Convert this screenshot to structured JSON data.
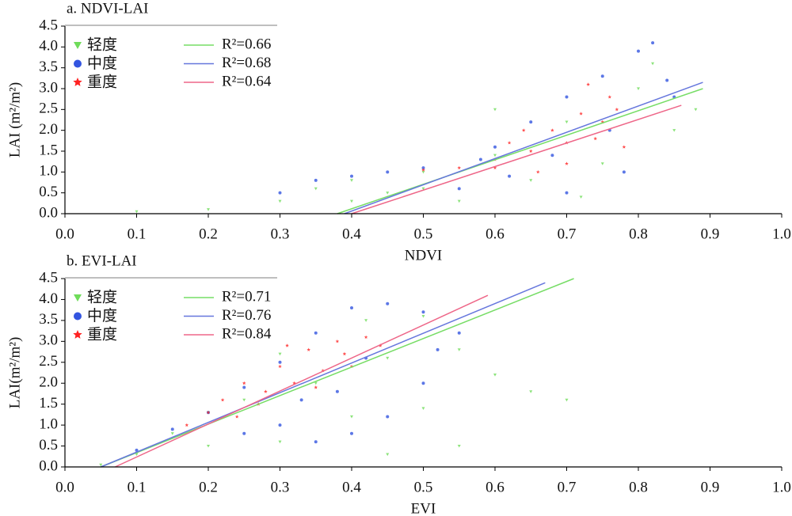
{
  "chart_data": [
    {
      "type": "scatter",
      "title": "a. NDVI-LAI",
      "xlabel": "NDVI",
      "ylabel": "LAI (m²/m²)",
      "xlim": [
        0,
        1
      ],
      "ylim": [
        0,
        4.5
      ],
      "xticks": [
        {
          "value": 0,
          "label": "0.0"
        },
        0.1,
        0.2,
        0.3,
        0.4,
        0.5,
        0.6,
        0.7,
        0.8,
        0.9,
        {
          "value": 1,
          "label": "1.0"
        }
      ],
      "yticks": [
        {
          "value": 0,
          "label": "0.0"
        },
        0.5,
        {
          "value": 1,
          "label": "1.0"
        },
        1.5,
        {
          "value": 2,
          "label": "2.0"
        },
        2.5,
        {
          "value": 3,
          "label": "3.0"
        },
        3.5,
        {
          "value": 4,
          "label": "4.0"
        },
        4.5
      ],
      "series": [
        {
          "name": "轻度",
          "color": "#6fdc5a",
          "marker": "triangle",
          "x": [
            0.1,
            0.2,
            0.3,
            0.35,
            0.4,
            0.45,
            0.5,
            0.55,
            0.6,
            0.65,
            0.7,
            0.75,
            0.8,
            0.85,
            0.88,
            0.82,
            0.6,
            0.4,
            0.5,
            0.72
          ],
          "values": [
            0.05,
            0.1,
            0.3,
            0.6,
            0.8,
            0.5,
            1.0,
            0.3,
            1.4,
            0.8,
            2.2,
            1.2,
            3.0,
            2.0,
            2.5,
            3.6,
            2.5,
            0.3,
            0.6,
            0.4
          ]
        },
        {
          "name": "中度",
          "color": "#3355e0",
          "marker": "circle",
          "x": [
            0.3,
            0.35,
            0.4,
            0.45,
            0.5,
            0.55,
            0.6,
            0.65,
            0.7,
            0.75,
            0.8,
            0.82,
            0.85,
            0.78,
            0.7,
            0.62,
            0.68,
            0.76,
            0.84,
            0.58
          ],
          "values": [
            0.5,
            0.8,
            0.9,
            1.0,
            1.1,
            0.6,
            1.6,
            2.2,
            2.8,
            3.3,
            3.9,
            4.1,
            2.8,
            1.0,
            0.5,
            0.9,
            1.4,
            2.0,
            3.2,
            1.3
          ]
        },
        {
          "name": "重度",
          "color": "#ff2222",
          "marker": "star",
          "x": [
            0.5,
            0.55,
            0.6,
            0.62,
            0.65,
            0.68,
            0.7,
            0.72,
            0.74,
            0.76,
            0.78,
            0.75,
            0.66,
            0.7,
            0.73,
            0.6,
            0.77,
            0.64
          ],
          "values": [
            1.05,
            1.1,
            1.3,
            1.7,
            1.5,
            2.0,
            1.2,
            2.4,
            1.8,
            2.8,
            1.6,
            2.2,
            1.0,
            1.7,
            3.1,
            1.1,
            2.5,
            2.0
          ]
        }
      ],
      "fits": [
        {
          "name": "R²=0.66",
          "color": "#77dd66",
          "x": [
            0.38,
            0.89
          ],
          "values": [
            0,
            3.0
          ]
        },
        {
          "name": "R²=0.68",
          "color": "#6677dd",
          "x": [
            0.39,
            0.89
          ],
          "values": [
            0,
            3.15
          ]
        },
        {
          "name": "R²=0.64",
          "color": "#ee6688",
          "x": [
            0.4,
            0.86
          ],
          "values": [
            0,
            2.6
          ]
        }
      ]
    },
    {
      "type": "scatter",
      "title": "b. EVI-LAI",
      "xlabel": "EVI",
      "ylabel": "LAI(m²/m²)",
      "xlim": [
        0,
        1
      ],
      "ylim": [
        0,
        4.5
      ],
      "xticks": [
        {
          "value": 0,
          "label": "0.0"
        },
        0.1,
        0.2,
        0.3,
        0.4,
        0.5,
        0.6,
        0.7,
        0.8,
        0.9,
        {
          "value": 1,
          "label": "1.0"
        }
      ],
      "yticks": [
        {
          "value": 0,
          "label": "0.0"
        },
        0.5,
        {
          "value": 1,
          "label": "1.0"
        },
        1.5,
        {
          "value": 2,
          "label": "2.0"
        },
        2.5,
        {
          "value": 3,
          "label": "3.0"
        },
        3.5,
        {
          "value": 4,
          "label": "4.0"
        },
        4.5
      ],
      "series": [
        {
          "name": "轻度",
          "color": "#6fdc5a",
          "marker": "triangle",
          "x": [
            0.05,
            0.1,
            0.15,
            0.2,
            0.25,
            0.3,
            0.35,
            0.4,
            0.45,
            0.5,
            0.55,
            0.6,
            0.65,
            0.5,
            0.3,
            0.42,
            0.2,
            0.55,
            0.7,
            0.45
          ],
          "values": [
            0.05,
            0.3,
            0.8,
            0.5,
            1.6,
            0.6,
            2.0,
            1.2,
            2.6,
            1.4,
            2.8,
            2.2,
            1.8,
            3.6,
            2.7,
            3.5,
            1.3,
            0.5,
            1.6,
            0.3
          ]
        },
        {
          "name": "中度",
          "color": "#3355e0",
          "marker": "circle",
          "x": [
            0.1,
            0.15,
            0.2,
            0.25,
            0.3,
            0.35,
            0.4,
            0.45,
            0.5,
            0.55,
            0.5,
            0.45,
            0.4,
            0.35,
            0.3,
            0.25,
            0.52,
            0.38,
            0.42,
            0.33
          ],
          "values": [
            0.4,
            0.9,
            1.3,
            1.9,
            2.5,
            3.2,
            3.8,
            3.9,
            3.7,
            3.2,
            2.0,
            1.2,
            0.8,
            0.6,
            1.0,
            0.8,
            2.8,
            1.8,
            2.6,
            1.6
          ]
        },
        {
          "name": "重度",
          "color": "#ff2222",
          "marker": "star",
          "x": [
            0.17,
            0.2,
            0.22,
            0.25,
            0.27,
            0.3,
            0.32,
            0.34,
            0.36,
            0.38,
            0.4,
            0.42,
            0.28,
            0.35,
            0.31,
            0.24,
            0.39,
            0.44
          ],
          "values": [
            1.0,
            1.3,
            1.6,
            2.0,
            1.5,
            2.4,
            2.0,
            2.8,
            2.3,
            3.0,
            2.4,
            3.1,
            1.8,
            1.9,
            2.9,
            1.2,
            2.7,
            2.9
          ]
        }
      ],
      "fits": [
        {
          "name": "R²=0.71",
          "color": "#77dd66",
          "x": [
            0.05,
            0.71
          ],
          "values": [
            0,
            4.5
          ]
        },
        {
          "name": "R²=0.76",
          "color": "#6677dd",
          "x": [
            0.05,
            0.67
          ],
          "values": [
            0,
            4.4
          ]
        },
        {
          "name": "R²=0.84",
          "color": "#ee6688",
          "x": [
            0.07,
            0.59
          ],
          "values": [
            0,
            4.1
          ]
        }
      ]
    }
  ]
}
